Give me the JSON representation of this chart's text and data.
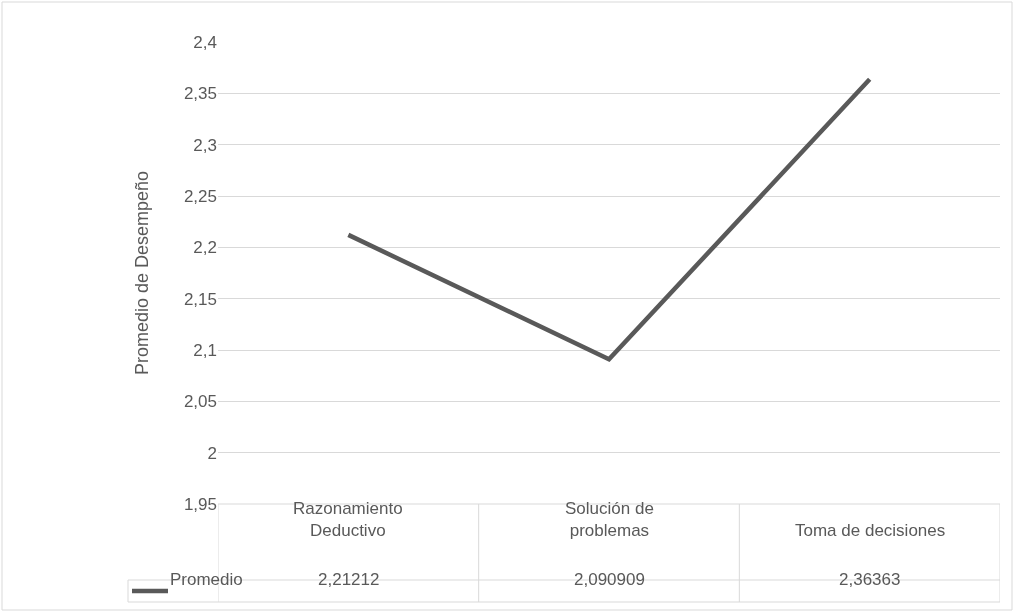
{
  "chart_data": {
    "type": "line",
    "ylabel": "Promedio de Desempeño",
    "categories": [
      "Razonamiento\nDeductivo",
      "Solución de\nproblemas",
      "Toma de decisiones"
    ],
    "series": [
      {
        "name": "Promedio",
        "color": "#595959",
        "values": [
          2.21212,
          2.090909,
          2.36363
        ],
        "value_labels": [
          "2,21212",
          "2,090909",
          "2,36363"
        ]
      }
    ],
    "ylim": [
      1.95,
      2.4
    ],
    "yticks": [
      {
        "value": 1.95,
        "label": "1,95"
      },
      {
        "value": 2,
        "label": "2"
      },
      {
        "value": 2.05,
        "label": "2,05"
      },
      {
        "value": 2.1,
        "label": "2,1"
      },
      {
        "value": 2.15,
        "label": "2,15"
      },
      {
        "value": 2.2,
        "label": "2,2"
      },
      {
        "value": 2.25,
        "label": "2,25"
      },
      {
        "value": 2.3,
        "label": "2,3"
      },
      {
        "value": 2.35,
        "label": "2,35"
      },
      {
        "value": 2.4,
        "label": "2,4"
      }
    ],
    "grid": "y",
    "marker": "none",
    "line_style": "solid",
    "legend": "bottom left"
  }
}
